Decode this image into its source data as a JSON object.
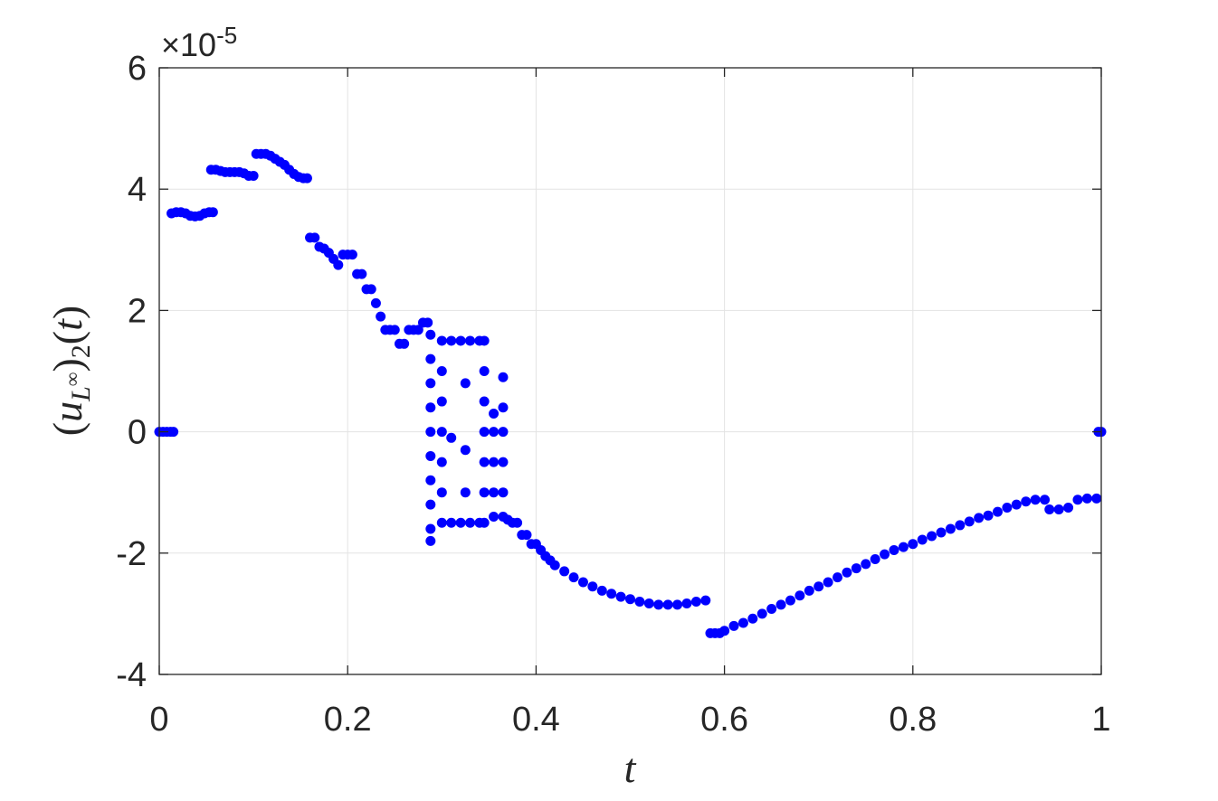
{
  "chart_data": {
    "type": "scatter",
    "xlabel": "t",
    "ylabel": [
      "(",
      "u",
      "L",
      "∞",
      ")",
      "2",
      "(",
      "t",
      ")"
    ],
    "y_multiplier": [
      "×10",
      "-5"
    ],
    "color": "#0000ff",
    "grid": true,
    "xlim": [
      0,
      1
    ],
    "xticks": [
      0,
      0.2,
      0.4,
      0.6,
      0.8,
      1
    ],
    "ylim": [
      -4,
      6
    ],
    "yticks": [
      -4,
      -2,
      0,
      2,
      4,
      6
    ],
    "x": [
      0,
      0.004,
      0.008,
      0.012,
      0.015,
      0.013,
      0.018,
      0.023,
      0.028,
      0.033,
      0.038,
      0.043,
      0.048,
      0.053,
      0.057,
      0.055,
      0.06,
      0.065,
      0.07,
      0.075,
      0.08,
      0.085,
      0.09,
      0.095,
      0.1,
      0.103,
      0.108,
      0.113,
      0.118,
      0.123,
      0.128,
      0.133,
      0.138,
      0.143,
      0.148,
      0.153,
      0.157,
      0.16,
      0.165,
      0.17,
      0.175,
      0.18,
      0.185,
      0.19,
      0.195,
      0.2,
      0.205,
      0.21,
      0.215,
      0.22,
      0.225,
      0.23,
      0.235,
      0.24,
      0.245,
      0.25,
      0.255,
      0.26,
      0.265,
      0.27,
      0.275,
      0.28,
      0.285,
      0.288,
      0.288,
      0.288,
      0.288,
      0.288,
      0.288,
      0.288,
      0.288,
      0.288,
      0.288,
      0.3,
      0.3,
      0.3,
      0.3,
      0.3,
      0.3,
      0.3,
      0.31,
      0.32,
      0.33,
      0.34,
      0.31,
      0.32,
      0.33,
      0.34,
      0.325,
      0.325,
      0.325,
      0.31,
      0.345,
      0.345,
      0.345,
      0.345,
      0.345,
      0.345,
      0.345,
      0.355,
      0.355,
      0.355,
      0.355,
      0.355,
      0.365,
      0.365,
      0.365,
      0.365,
      0.365,
      0.365,
      0.37,
      0.375,
      0.38,
      0.385,
      0.39,
      0.395,
      0.4,
      0.405,
      0.41,
      0.415,
      0.42,
      0.43,
      0.44,
      0.45,
      0.46,
      0.47,
      0.48,
      0.49,
      0.5,
      0.51,
      0.52,
      0.53,
      0.54,
      0.55,
      0.56,
      0.57,
      0.58,
      0.585,
      0.59,
      0.595,
      0.6,
      0.61,
      0.62,
      0.63,
      0.64,
      0.65,
      0.66,
      0.67,
      0.68,
      0.69,
      0.7,
      0.71,
      0.72,
      0.73,
      0.74,
      0.75,
      0.76,
      0.77,
      0.78,
      0.79,
      0.8,
      0.81,
      0.82,
      0.83,
      0.84,
      0.85,
      0.86,
      0.87,
      0.88,
      0.89,
      0.9,
      0.91,
      0.92,
      0.93,
      0.94,
      0.945,
      0.955,
      0.965,
      0.975,
      0.985,
      0.995,
      0.997,
      1.0
    ],
    "values": [
      0,
      0,
      0,
      0,
      0,
      3.6,
      3.62,
      3.62,
      3.6,
      3.56,
      3.55,
      3.56,
      3.6,
      3.62,
      3.62,
      4.32,
      4.32,
      4.3,
      4.28,
      4.28,
      4.28,
      4.28,
      4.26,
      4.22,
      4.22,
      4.58,
      4.58,
      4.58,
      4.55,
      4.5,
      4.45,
      4.4,
      4.32,
      4.25,
      4.2,
      4.18,
      4.18,
      3.2,
      3.2,
      3.05,
      3.02,
      2.95,
      2.85,
      2.75,
      2.92,
      2.92,
      2.92,
      2.6,
      2.6,
      2.35,
      2.35,
      2.12,
      1.9,
      1.68,
      1.68,
      1.68,
      1.45,
      1.45,
      1.68,
      1.68,
      1.68,
      1.8,
      1.8,
      1.6,
      1.2,
      0.8,
      0.4,
      0,
      -0.4,
      -0.8,
      -1.2,
      -1.6,
      -1.8,
      1.5,
      1.0,
      0.5,
      0,
      -0.5,
      -1.0,
      -1.5,
      1.5,
      1.5,
      1.5,
      1.5,
      -1.5,
      -1.5,
      -1.5,
      -1.5,
      0.8,
      -0.3,
      -1.0,
      -0.1,
      1.5,
      1.0,
      0.5,
      0,
      -0.5,
      -1.0,
      -1.5,
      0.3,
      0,
      -0.5,
      -1.0,
      -1.4,
      0.9,
      0.4,
      0,
      -0.5,
      -1.0,
      -1.4,
      -1.45,
      -1.5,
      -1.5,
      -1.7,
      -1.7,
      -1.85,
      -1.85,
      -1.95,
      -2.05,
      -2.12,
      -2.2,
      -2.3,
      -2.4,
      -2.48,
      -2.55,
      -2.62,
      -2.67,
      -2.72,
      -2.76,
      -2.8,
      -2.83,
      -2.85,
      -2.85,
      -2.85,
      -2.83,
      -2.8,
      -2.78,
      -3.32,
      -3.32,
      -3.32,
      -3.28,
      -3.2,
      -3.15,
      -3.08,
      -3.0,
      -2.92,
      -2.85,
      -2.78,
      -2.7,
      -2.62,
      -2.55,
      -2.48,
      -2.4,
      -2.32,
      -2.25,
      -2.18,
      -2.1,
      -2.02,
      -1.95,
      -1.9,
      -1.85,
      -1.78,
      -1.72,
      -1.66,
      -1.6,
      -1.54,
      -1.48,
      -1.42,
      -1.38,
      -1.32,
      -1.25,
      -1.2,
      -1.15,
      -1.12,
      -1.12,
      -1.28,
      -1.28,
      -1.25,
      -1.12,
      -1.1,
      -1.1,
      0,
      0
    ]
  }
}
